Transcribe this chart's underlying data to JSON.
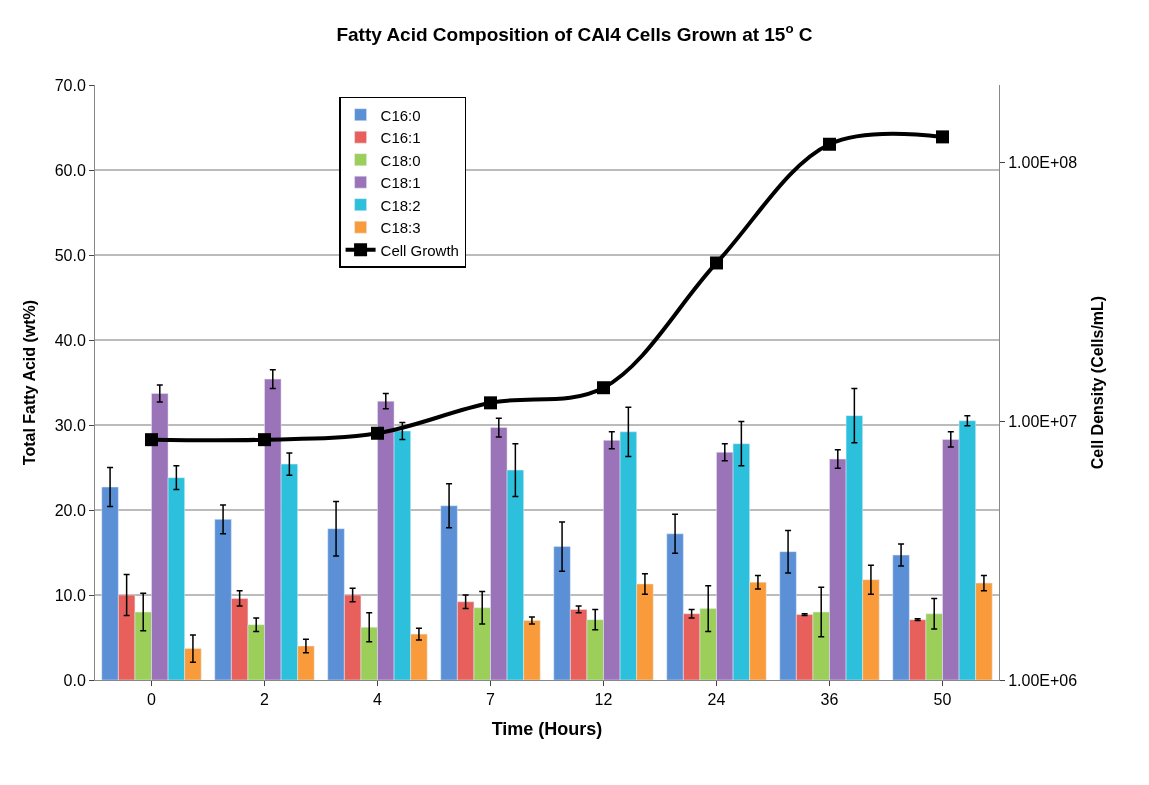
{
  "chart_data": {
    "type": "bar",
    "title": "Fatty Acid Composition of CAI4 Cells Grown at 15$^{o}$ C",
    "xlabel": "Time (Hours)",
    "ylabel": "Total Fatty Acid (wt%)",
    "y2label": "Cell Density (Cells/mL)",
    "categories": [
      "0",
      "2",
      "4",
      "7",
      "12",
      "24",
      "36",
      "50"
    ],
    "ylim": [
      0,
      70
    ],
    "yticks": [
      {
        "value": 0,
        "label": "0.0"
      },
      {
        "value": 10,
        "label": "10.0"
      },
      {
        "value": 20,
        "label": "20.0"
      },
      {
        "value": 30,
        "label": "30.0"
      },
      {
        "value": 40,
        "label": "40.0"
      },
      {
        "value": 50,
        "label": "50.0"
      },
      {
        "value": 60,
        "label": "60.0"
      },
      {
        "value": 70,
        "label": "70.0"
      }
    ],
    "y2lim": [
      1000000,
      200000000
    ],
    "y2ticks": [
      {
        "value": 1000000,
        "label": "1.00E+06"
      },
      {
        "value": 10000000,
        "label": "1.00E+07"
      },
      {
        "value": 100000000,
        "label": "1.00E+08"
      }
    ],
    "log": "y2",
    "grid": "y",
    "legend": "top left",
    "series": [
      {
        "name": "C16:0",
        "color": "#5b8fd6",
        "values": [
          22.7,
          18.9,
          17.8,
          20.5,
          15.7,
          17.2,
          15.1,
          14.7
        ],
        "errors": [
          2.3,
          1.7,
          3.2,
          2.6,
          2.9,
          2.3,
          2.5,
          1.3
        ]
      },
      {
        "name": "C16:1",
        "color": "#e8605c",
        "values": [
          10.0,
          9.6,
          10.0,
          9.2,
          8.3,
          7.8,
          7.7,
          7.1
        ],
        "errors": [
          2.4,
          0.9,
          0.8,
          0.8,
          0.4,
          0.5,
          0.1,
          0.1
        ]
      },
      {
        "name": "C18:0",
        "color": "#9bcf5a",
        "values": [
          8.0,
          6.5,
          6.2,
          8.5,
          7.1,
          8.4,
          8.0,
          7.8
        ],
        "errors": [
          2.2,
          0.8,
          1.7,
          1.9,
          1.2,
          2.7,
          2.9,
          1.8
        ]
      },
      {
        "name": "C18:1",
        "color": "#9a73b8",
        "values": [
          33.7,
          35.4,
          32.8,
          29.7,
          28.2,
          26.8,
          26.0,
          28.3
        ],
        "errors": [
          1.0,
          1.1,
          0.9,
          1.1,
          1.0,
          1.0,
          1.1,
          0.9
        ]
      },
      {
        "name": "C18:2",
        "color": "#2cc0dc",
        "values": [
          23.8,
          25.4,
          29.3,
          24.7,
          29.2,
          27.8,
          31.1,
          30.5
        ],
        "errors": [
          1.4,
          1.3,
          1.0,
          3.1,
          2.9,
          2.6,
          3.2,
          0.6
        ]
      },
      {
        "name": "C18:3",
        "color": "#f99b3a",
        "values": [
          3.7,
          4.0,
          5.4,
          7.0,
          11.3,
          11.5,
          11.8,
          11.4
        ],
        "errors": [
          1.6,
          0.8,
          0.7,
          0.4,
          1.2,
          0.8,
          1.7,
          0.9
        ]
      },
      {
        "name": "Cell Growth",
        "type": "line",
        "axis": "y2",
        "color": "#000000",
        "marker": "square",
        "values": [
          8500000,
          8500000,
          9000000,
          11800000,
          13500000,
          41000000,
          118000000,
          126000000
        ]
      }
    ]
  }
}
